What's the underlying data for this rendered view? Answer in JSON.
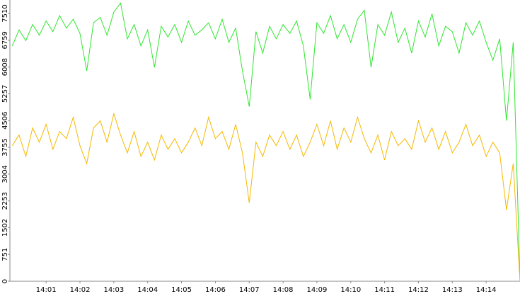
{
  "chart_data": {
    "type": "line",
    "x": [
      0,
      0.2,
      0.4,
      0.6,
      0.8,
      1,
      1.2,
      1.4,
      1.6,
      1.8,
      2,
      2.2,
      2.4,
      2.6,
      2.8,
      3,
      3.2,
      3.4,
      3.6,
      3.8,
      4,
      4.2,
      4.4,
      4.6,
      4.8,
      5,
      5.2,
      5.4,
      5.6,
      5.8,
      6,
      6.2,
      6.4,
      6.6,
      6.8,
      7,
      7.2,
      7.4,
      7.6,
      7.8,
      8,
      8.2,
      8.4,
      8.6,
      8.8,
      9,
      9.2,
      9.4,
      9.6,
      9.8,
      10,
      10.2,
      10.4,
      10.6,
      10.8,
      11,
      11.2,
      11.4,
      11.6,
      11.8,
      12,
      12.2,
      12.4,
      12.6,
      12.8,
      13,
      13.2,
      13.4,
      13.6,
      13.8,
      14,
      14.2,
      14.4,
      14.6,
      14.8,
      15
    ],
    "series": [
      {
        "color": "#2ee62e",
        "values": [
          6600,
          7050,
          6750,
          7200,
          6900,
          7300,
          7000,
          7450,
          7100,
          7350,
          6950,
          5900,
          7250,
          7400,
          6900,
          7550,
          7800,
          6800,
          7200,
          6600,
          7050,
          6000,
          7150,
          6850,
          7200,
          6700,
          7300,
          6900,
          7050,
          7250,
          6800,
          7350,
          6700,
          7100,
          5900,
          4900,
          7000,
          6400,
          7150,
          6800,
          7200,
          6950,
          7300,
          6600,
          5100,
          7250,
          6950,
          7450,
          6800,
          7200,
          6700,
          7350,
          7600,
          6000,
          7200,
          6900,
          7550,
          6700,
          7100,
          6400,
          7300,
          6850,
          7500,
          6600,
          7150,
          7000,
          6400,
          7250,
          6900,
          7300,
          6700,
          6200,
          6800,
          4500,
          6700,
          0
        ]
      },
      {
        "color": "#f5b800",
        "values": [
          3800,
          4100,
          3500,
          4300,
          3900,
          4400,
          3700,
          4200,
          4000,
          4600,
          3800,
          3300,
          4300,
          4500,
          3900,
          4700,
          4100,
          3600,
          4200,
          3500,
          3900,
          3400,
          4100,
          3700,
          4000,
          3600,
          3900,
          4300,
          3800,
          4600,
          4000,
          4200,
          3700,
          4400,
          3600,
          2200,
          3900,
          3500,
          4100,
          3800,
          4200,
          3700,
          4100,
          3500,
          3900,
          4400,
          3800,
          4500,
          3700,
          4300,
          3900,
          4600,
          4000,
          3600,
          4100,
          3400,
          4200,
          3800,
          4000,
          3700,
          4500,
          3900,
          4300,
          3700,
          4200,
          3600,
          3900,
          4400,
          3800,
          4100,
          3500,
          3900,
          3600,
          2000,
          3300,
          0
        ]
      }
    ],
    "xlim": [
      -0.07,
      15.0
    ],
    "xticks": [
      {
        "value": 1,
        "label": "14:01"
      },
      {
        "value": 2,
        "label": "14:02"
      },
      {
        "value": 3,
        "label": "14:03"
      },
      {
        "value": 4,
        "label": "14:04"
      },
      {
        "value": 5,
        "label": "14:05"
      },
      {
        "value": 6,
        "label": "14:06"
      },
      {
        "value": 7,
        "label": "14:07"
      },
      {
        "value": 8,
        "label": "14:08"
      },
      {
        "value": 9,
        "label": "14:09"
      },
      {
        "value": 10,
        "label": "14:10"
      },
      {
        "value": 11,
        "label": "14:11"
      },
      {
        "value": 12,
        "label": "14:12"
      },
      {
        "value": 13,
        "label": "14:13"
      },
      {
        "value": 14,
        "label": "14:14"
      }
    ],
    "ylim": [
      0,
      7888
    ],
    "yticks": [
      0,
      751,
      1502,
      2253,
      3004,
      3755,
      4506,
      5257,
      6008,
      6759,
      7510
    ]
  }
}
